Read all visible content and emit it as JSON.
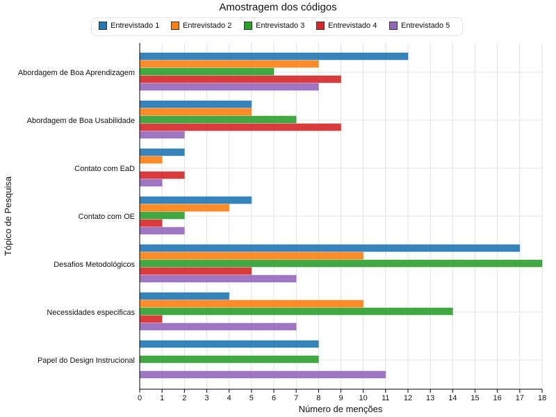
{
  "chart_data": {
    "type": "bar",
    "orientation": "horizontal",
    "title": "Amostragem dos códigos",
    "xlabel": "Número de menções",
    "ylabel": "Tópico de Pesquisa",
    "xlim": [
      0,
      18
    ],
    "xticks": [
      0,
      1,
      2,
      3,
      4,
      5,
      6,
      7,
      8,
      9,
      10,
      11,
      12,
      13,
      14,
      15,
      16,
      17,
      18
    ],
    "grid": true,
    "legend_position": "top",
    "categories": [
      "Abordagem de Boa Aprendizagem",
      "Abordagem de Boa Usabilidade",
      "Contato com EaD",
      "Contato com OE",
      "Desafios Metodológicos",
      "Necessidades especificas",
      "Papel do Design Instrucional"
    ],
    "series": [
      {
        "name": "Entrevistado 1",
        "color": "#1f77b4",
        "values": [
          12,
          5,
          2,
          5,
          17,
          4,
          8
        ]
      },
      {
        "name": "Entrevistado 2",
        "color": "#ff7f0e",
        "values": [
          8,
          5,
          1,
          4,
          10,
          10,
          0
        ]
      },
      {
        "name": "Entrevistado 3",
        "color": "#2ca02c",
        "values": [
          6,
          7,
          0,
          2,
          18,
          14,
          8
        ]
      },
      {
        "name": "Entrevistado 4",
        "color": "#d62728",
        "values": [
          9,
          9,
          2,
          1,
          5,
          1,
          0
        ]
      },
      {
        "name": "Entrevistado 5",
        "color": "#9467bd",
        "values": [
          8,
          2,
          1,
          2,
          7,
          7,
          11
        ]
      }
    ]
  }
}
